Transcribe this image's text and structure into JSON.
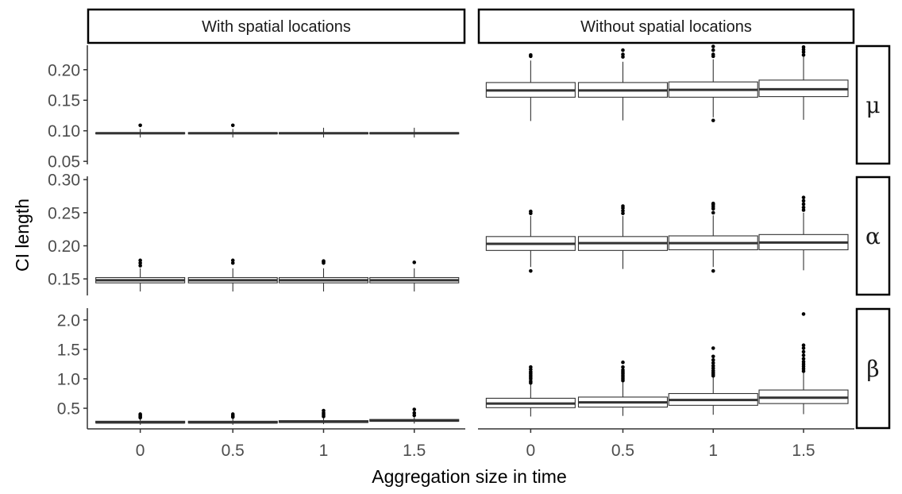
{
  "chart_data": {
    "type": "boxplot",
    "xlabel": "Aggregation size in time",
    "ylabel": "CI length",
    "categories": [
      "0",
      "0.5",
      "1",
      "1.5"
    ],
    "column_facets": [
      "With spatial locations",
      "Without spatial locations"
    ],
    "row_facets": [
      {
        "label": "μ",
        "ylim": [
          0.045,
          0.24
        ],
        "yticks": [
          0.05,
          0.1,
          0.15,
          0.2
        ],
        "ytick_labels": [
          "0.05",
          "0.10",
          "0.15",
          "0.20"
        ],
        "panels": [
          {
            "column": "With spatial locations",
            "boxes": [
              {
                "x": "0",
                "min": 0.089,
                "q1": 0.095,
                "median": 0.096,
                "q3": 0.097,
                "max": 0.103,
                "outliers": [
                  0.109
                ]
              },
              {
                "x": "0.5",
                "min": 0.089,
                "q1": 0.095,
                "median": 0.096,
                "q3": 0.097,
                "max": 0.103,
                "outliers": [
                  0.109
                ]
              },
              {
                "x": "1",
                "min": 0.089,
                "q1": 0.095,
                "median": 0.096,
                "q3": 0.097,
                "max": 0.105,
                "outliers": []
              },
              {
                "x": "1.5",
                "min": 0.089,
                "q1": 0.095,
                "median": 0.096,
                "q3": 0.097,
                "max": 0.105,
                "outliers": []
              }
            ]
          },
          {
            "column": "Without spatial locations",
            "boxes": [
              {
                "x": "0",
                "min": 0.116,
                "q1": 0.155,
                "median": 0.166,
                "q3": 0.179,
                "max": 0.215,
                "outliers": [
                  0.222,
                  0.224
                ]
              },
              {
                "x": "0.5",
                "min": 0.117,
                "q1": 0.155,
                "median": 0.166,
                "q3": 0.179,
                "max": 0.213,
                "outliers": [
                  0.221,
                  0.225,
                  0.232
                ]
              },
              {
                "x": "1",
                "min": 0.122,
                "q1": 0.155,
                "median": 0.167,
                "q3": 0.18,
                "max": 0.217,
                "outliers": [
                  0.117,
                  0.222,
                  0.225,
                  0.232,
                  0.238
                ]
              },
              {
                "x": "1.5",
                "min": 0.118,
                "q1": 0.156,
                "median": 0.168,
                "q3": 0.183,
                "max": 0.221,
                "outliers": [
                  0.224,
                  0.229,
                  0.233,
                  0.237
                ]
              }
            ]
          }
        ]
      },
      {
        "label": "α",
        "ylim": [
          0.125,
          0.305
        ],
        "yticks": [
          0.15,
          0.2,
          0.25,
          0.3
        ],
        "ytick_labels": [
          "0.15",
          "0.20",
          "0.25",
          "0.30"
        ],
        "panels": [
          {
            "column": "With spatial locations",
            "boxes": [
              {
                "x": "0",
                "min": 0.131,
                "q1": 0.144,
                "median": 0.148,
                "q3": 0.152,
                "max": 0.166,
                "outliers": [
                  0.17,
                  0.174,
                  0.178
                ]
              },
              {
                "x": "0.5",
                "min": 0.131,
                "q1": 0.144,
                "median": 0.148,
                "q3": 0.152,
                "max": 0.166,
                "outliers": [
                  0.174,
                  0.178
                ]
              },
              {
                "x": "1",
                "min": 0.131,
                "q1": 0.144,
                "median": 0.148,
                "q3": 0.152,
                "max": 0.166,
                "outliers": [
                  0.174,
                  0.176,
                  0.177
                ]
              },
              {
                "x": "1.5",
                "min": 0.131,
                "q1": 0.144,
                "median": 0.148,
                "q3": 0.152,
                "max": 0.166,
                "outliers": [
                  0.175
                ]
              }
            ]
          },
          {
            "column": "Without spatial locations",
            "boxes": [
              {
                "x": "0",
                "min": 0.168,
                "q1": 0.193,
                "median": 0.203,
                "q3": 0.214,
                "max": 0.245,
                "outliers": [
                  0.162,
                  0.249,
                  0.252
                ]
              },
              {
                "x": "0.5",
                "min": 0.165,
                "q1": 0.193,
                "median": 0.204,
                "q3": 0.214,
                "max": 0.245,
                "outliers": [
                  0.249,
                  0.253,
                  0.257,
                  0.26
                ]
              },
              {
                "x": "1",
                "min": 0.168,
                "q1": 0.194,
                "median": 0.204,
                "q3": 0.215,
                "max": 0.246,
                "outliers": [
                  0.162,
                  0.25,
                  0.256,
                  0.259,
                  0.262,
                  0.264
                ]
              },
              {
                "x": "1.5",
                "min": 0.163,
                "q1": 0.194,
                "median": 0.205,
                "q3": 0.217,
                "max": 0.25,
                "outliers": [
                  0.254,
                  0.258,
                  0.263,
                  0.268,
                  0.273
                ]
              }
            ]
          }
        ]
      },
      {
        "label": "β",
        "ylim": [
          0.15,
          2.2
        ],
        "yticks": [
          0.5,
          1.0,
          1.5,
          2.0
        ],
        "ytick_labels": [
          "0.5",
          "1.0",
          "1.5",
          "2.0"
        ],
        "panels": [
          {
            "column": "With spatial locations",
            "boxes": [
              {
                "x": "0",
                "min": 0.22,
                "q1": 0.25,
                "median": 0.26,
                "q3": 0.28,
                "max": 0.32,
                "outliers": [
                  0.34,
                  0.36,
                  0.38,
                  0.4
                ]
              },
              {
                "x": "0.5",
                "min": 0.22,
                "q1": 0.25,
                "median": 0.26,
                "q3": 0.28,
                "max": 0.32,
                "outliers": [
                  0.35,
                  0.37,
                  0.4
                ]
              },
              {
                "x": "1",
                "min": 0.23,
                "q1": 0.26,
                "median": 0.27,
                "q3": 0.29,
                "max": 0.33,
                "outliers": [
                  0.36,
                  0.39,
                  0.42,
                  0.46
                ]
              },
              {
                "x": "1.5",
                "min": 0.24,
                "q1": 0.28,
                "median": 0.29,
                "q3": 0.31,
                "max": 0.35,
                "outliers": [
                  0.38,
                  0.42,
                  0.48
                ]
              }
            ]
          },
          {
            "column": "Without spatial locations",
            "boxes": [
              {
                "x": "0",
                "min": 0.36,
                "q1": 0.51,
                "median": 0.58,
                "q3": 0.67,
                "max": 0.91,
                "outliers": [
                  0.93,
                  0.96,
                  1.0,
                  1.03,
                  1.06,
                  1.09,
                  1.12,
                  1.16,
                  1.2
                ]
              },
              {
                "x": "0.5",
                "min": 0.37,
                "q1": 0.52,
                "median": 0.6,
                "q3": 0.69,
                "max": 0.94,
                "outliers": [
                  0.97,
                  1.0,
                  1.03,
                  1.06,
                  1.09,
                  1.12,
                  1.15,
                  1.2,
                  1.28
                ]
              },
              {
                "x": "1",
                "min": 0.39,
                "q1": 0.55,
                "median": 0.64,
                "q3": 0.75,
                "max": 1.02,
                "outliers": [
                  1.05,
                  1.08,
                  1.11,
                  1.14,
                  1.18,
                  1.22,
                  1.27,
                  1.32,
                  1.38,
                  1.52
                ]
              },
              {
                "x": "1.5",
                "min": 0.4,
                "q1": 0.58,
                "median": 0.68,
                "q3": 0.81,
                "max": 1.1,
                "outliers": [
                  1.13,
                  1.17,
                  1.21,
                  1.25,
                  1.29,
                  1.34,
                  1.4,
                  1.46,
                  1.52,
                  1.57,
                  2.1
                ]
              }
            ]
          }
        ]
      }
    ]
  }
}
